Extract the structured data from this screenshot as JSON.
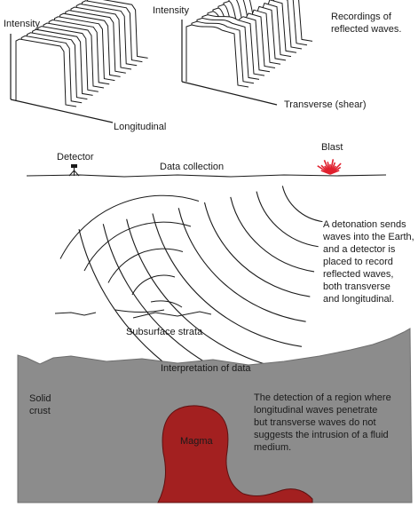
{
  "panels": {
    "longitudinal": {
      "y_label": "Intensity",
      "x_label": "Longitudinal"
    },
    "transverse": {
      "y_label": "Intensity",
      "x_label": "Transverse (shear)",
      "caption_lines": [
        "Recordings of",
        "reflected waves."
      ]
    }
  },
  "collection": {
    "detector_label": "Detector",
    "blast_label": "Blast",
    "title": "Data collection",
    "strata_label": "Subsurface strata",
    "note_lines": [
      "A detonation sends",
      "waves into the Earth,",
      "and a detector is",
      "placed to record",
      "reflected waves,",
      "both transverse",
      "and longitudinal."
    ]
  },
  "interpretation": {
    "title": "Interpretation of data",
    "crust_lines": [
      "Solid",
      "crust"
    ],
    "magma_label": "Magma",
    "note_lines": [
      "The detection of a region where",
      "longitudinal waves penetrate",
      "but transverse waves do not",
      "suggests the intrusion of a fluid",
      "medium."
    ]
  },
  "colors": {
    "crust": "#8c8c8c",
    "crust_edge": "#6e6e6e",
    "magma": "#a32020",
    "blast": "#e0202e",
    "ink": "#1a1a1a"
  }
}
